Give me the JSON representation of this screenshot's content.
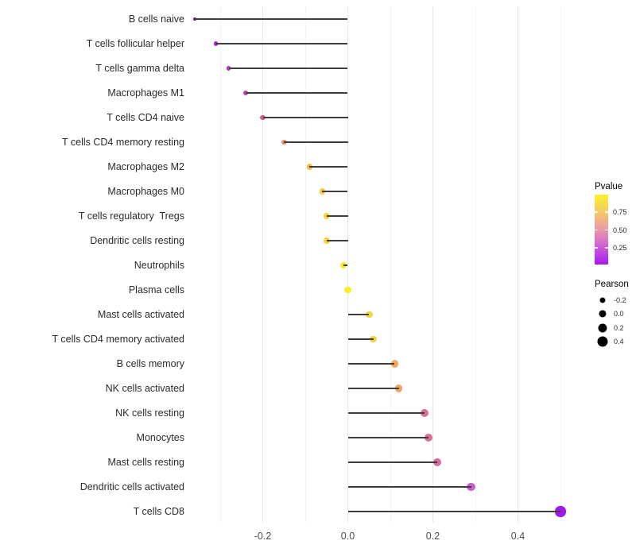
{
  "chart_data": {
    "type": "lollipop",
    "title": "",
    "xlabel": "",
    "ylabel": "",
    "x_axis": {
      "tick_labels": [
        "-0.2",
        "0.0",
        "0.2",
        "0.4"
      ],
      "tick_values": [
        -0.2,
        0.0,
        0.2,
        0.4
      ],
      "minor_gridlines": [
        -0.3,
        -0.1,
        0.1,
        0.3,
        0.5
      ],
      "range": [
        -0.4,
        0.545
      ],
      "baseline": 0.0
    },
    "rows": [
      {
        "label": "B cells naive",
        "pearson": -0.36,
        "pvalue": 0.05,
        "color": "#8306C1"
      },
      {
        "label": "T cells follicular helper",
        "pearson": -0.31,
        "pvalue": 0.12,
        "color": "#A326C1"
      },
      {
        "label": "T cells gamma delta",
        "pearson": -0.28,
        "pvalue": 0.17,
        "color": "#B437B4"
      },
      {
        "label": "Macrophages M1",
        "pearson": -0.24,
        "pvalue": 0.22,
        "color": "#C247A4"
      },
      {
        "label": "T cells CD4 naive",
        "pearson": -0.2,
        "pvalue": 0.32,
        "color": "#D05E8E"
      },
      {
        "label": "T cells CD4 memory resting",
        "pearson": -0.15,
        "pvalue": 0.48,
        "color": "#E88F70"
      },
      {
        "label": "Macrophages M2",
        "pearson": -0.09,
        "pvalue": 0.65,
        "color": "#F2BC4A"
      },
      {
        "label": "Macrophages M0",
        "pearson": -0.06,
        "pvalue": 0.7,
        "color": "#F5CC3E"
      },
      {
        "label": "T cells regulatory  Tregs",
        "pearson": -0.05,
        "pvalue": 0.72,
        "color": "#F6D23A"
      },
      {
        "label": "Dendritic cells resting",
        "pearson": -0.05,
        "pvalue": 0.72,
        "color": "#F6D23A"
      },
      {
        "label": "Neutrophils",
        "pearson": -0.01,
        "pvalue": 0.93,
        "color": "#F8EC28"
      },
      {
        "label": "Plasma cells",
        "pearson": 0.0,
        "pvalue": 0.95,
        "color": "#F9F02A"
      },
      {
        "label": "Mast cells activated",
        "pearson": 0.05,
        "pvalue": 0.74,
        "color": "#F6D53E"
      },
      {
        "label": "T cells CD4 memory activated",
        "pearson": 0.06,
        "pvalue": 0.73,
        "color": "#F5D042"
      },
      {
        "label": "B cells memory",
        "pearson": 0.11,
        "pvalue": 0.6,
        "color": "#F1A95F"
      },
      {
        "label": "NK cells activated",
        "pearson": 0.12,
        "pvalue": 0.58,
        "color": "#F0A660"
      },
      {
        "label": "NK cells resting",
        "pearson": 0.18,
        "pvalue": 0.4,
        "color": "#DB7190"
      },
      {
        "label": "Monocytes",
        "pearson": 0.19,
        "pvalue": 0.4,
        "color": "#DA7093"
      },
      {
        "label": "Mast cells resting",
        "pearson": 0.21,
        "pvalue": 0.36,
        "color": "#D56B9E"
      },
      {
        "label": "Dendritic cells activated",
        "pearson": 0.29,
        "pvalue": 0.24,
        "color": "#C75FC8"
      },
      {
        "label": "T cells CD8",
        "pearson": 0.5,
        "pvalue": 0.02,
        "color": "#A019E8"
      }
    ],
    "legends": {
      "pvalue": {
        "title": "Pvalue",
        "ticks": [
          {
            "label": "0.75",
            "pct": 25.0
          },
          {
            "label": "0.50",
            "pct": 50.6
          },
          {
            "label": "0.25",
            "pct": 76.0
          }
        ],
        "gradient_top_to_bottom": [
          {
            "color": "#F9F22B",
            "pct": 0
          },
          {
            "color": "#F5C968",
            "pct": 25
          },
          {
            "color": "#E79BA8",
            "pct": 50
          },
          {
            "color": "#CB5DD8",
            "pct": 75
          },
          {
            "color": "#A718F0",
            "pct": 100
          }
        ]
      },
      "pearson": {
        "title": "Pearson",
        "entries": [
          {
            "label": "-0.2",
            "value": -0.2
          },
          {
            "label": "0.0",
            "value": 0.0
          },
          {
            "label": "0.2",
            "value": 0.2
          },
          {
            "label": "0.4",
            "value": 0.4
          }
        ]
      }
    },
    "style": {
      "stem_color": "#3d3d3d",
      "gridline_major_color": "#e9e9e9",
      "gridline_minor_color": "#f3f3f3",
      "background": "#ffffff"
    }
  }
}
